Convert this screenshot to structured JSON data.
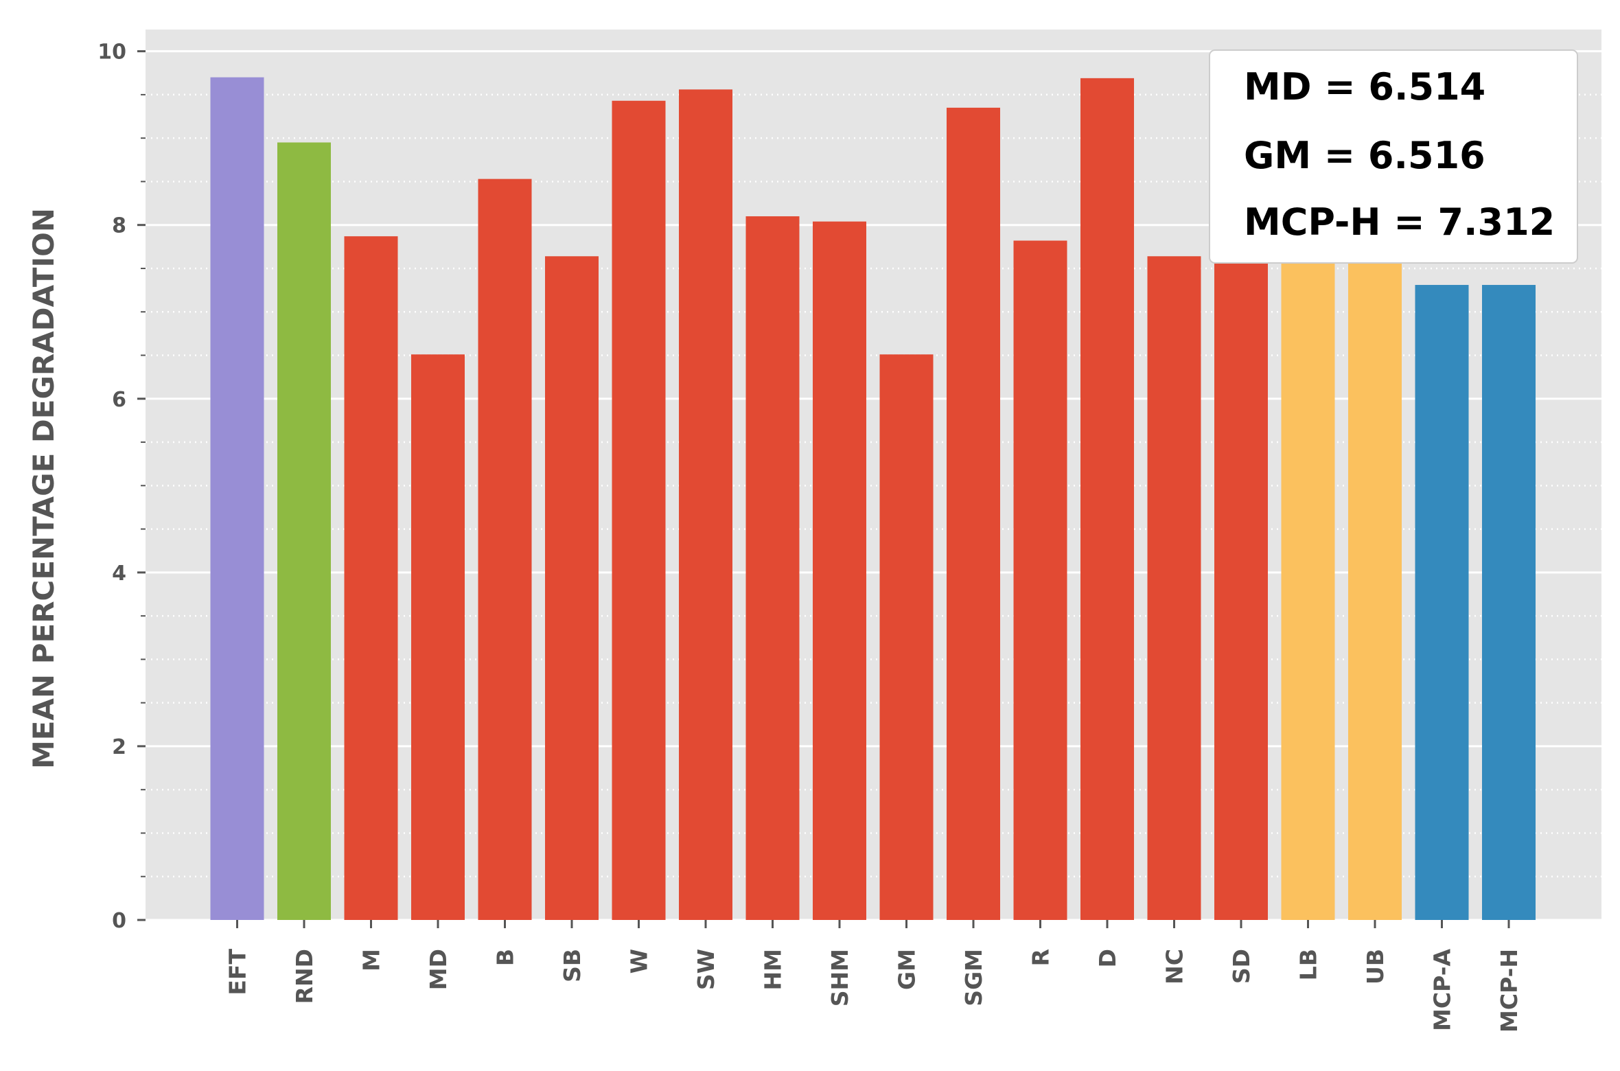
{
  "chart_data": {
    "type": "bar",
    "ylabel": "MEAN PERCENTAGE DEGRADATION",
    "xlabel": "",
    "ylim": [
      0,
      10.25
    ],
    "yticks": [
      0,
      2,
      4,
      6,
      8,
      10
    ],
    "grid": true,
    "background": "#e5e5e5",
    "categories": [
      "EFT",
      "RND",
      "M",
      "MD",
      "B",
      "SB",
      "W",
      "SW",
      "HM",
      "SHM",
      "GM",
      "SGM",
      "R",
      "D",
      "NC",
      "SD",
      "LB",
      "UB",
      "MCP-A",
      "MCP-H"
    ],
    "values": [
      9.7,
      8.95,
      7.87,
      6.51,
      8.53,
      7.64,
      9.43,
      9.56,
      8.1,
      8.04,
      6.51,
      9.35,
      7.82,
      9.69,
      7.64,
      7.57,
      7.7,
      7.7,
      7.31,
      7.31
    ],
    "colors": [
      "#988ed5",
      "#8eba42",
      "#e24a33",
      "#e24a33",
      "#e24a33",
      "#e24a33",
      "#e24a33",
      "#e24a33",
      "#e24a33",
      "#e24a33",
      "#e24a33",
      "#e24a33",
      "#e24a33",
      "#e24a33",
      "#e24a33",
      "#e24a33",
      "#fbc15e",
      "#fbc15e",
      "#348abd",
      "#348abd"
    ],
    "annotations": [
      "MD = 6.514",
      "GM = 6.516",
      "MCP-H = 7.312"
    ],
    "annotation_placement": "top-right"
  }
}
